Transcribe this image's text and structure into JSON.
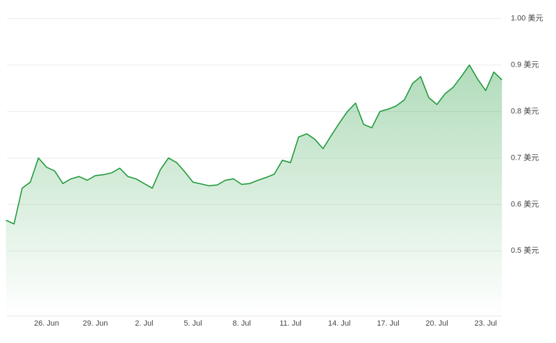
{
  "chart_data": {
    "type": "line",
    "categories": [
      null,
      null,
      null,
      null,
      null,
      "26. Jun",
      null,
      null,
      null,
      null,
      null,
      "29. Jun",
      null,
      null,
      null,
      null,
      null,
      "2. Jul",
      null,
      null,
      null,
      null,
      null,
      "5. Jul",
      null,
      null,
      null,
      null,
      null,
      "8. Jul",
      null,
      null,
      null,
      null,
      null,
      "11. Jul",
      null,
      null,
      null,
      null,
      null,
      "14. Jul",
      null,
      null,
      null,
      null,
      null,
      "17. Jul",
      null,
      null,
      null,
      null,
      null,
      "20. Jul",
      null,
      null,
      null,
      null,
      null,
      "23. Jul",
      null,
      null
    ],
    "series": [
      {
        "color": "#1f9a3a",
        "values": [
          0.566,
          0.558,
          0.635,
          0.648,
          0.7,
          0.68,
          0.672,
          0.645,
          0.655,
          0.66,
          0.652,
          0.662,
          0.664,
          0.668,
          0.678,
          0.66,
          0.655,
          0.645,
          0.635,
          0.675,
          0.7,
          0.69,
          0.67,
          0.648,
          0.644,
          0.64,
          0.642,
          0.652,
          0.655,
          0.643,
          0.645,
          0.652,
          0.658,
          0.665,
          0.695,
          0.69,
          0.745,
          0.752,
          0.74,
          0.72,
          0.748,
          0.775,
          0.8,
          0.818,
          0.772,
          0.765,
          0.8,
          0.805,
          0.812,
          0.825,
          0.86,
          0.875,
          0.83,
          0.815,
          0.838,
          0.852,
          0.875,
          0.9,
          0.87,
          0.845,
          0.885,
          0.868
        ]
      }
    ],
    "ylim": [
      0.36,
      1.01
    ],
    "yticks": [
      {
        "value": 0.5,
        "label": "0.5 美元"
      },
      {
        "value": 0.6,
        "label": "0.6 美元"
      },
      {
        "value": 0.7,
        "label": "0.7 美元"
      },
      {
        "value": 0.8,
        "label": "0.8 美元"
      },
      {
        "value": 0.9,
        "label": "0.9 美元"
      },
      {
        "value": 1.0,
        "label": "1.00 美元"
      }
    ],
    "grid": true
  }
}
